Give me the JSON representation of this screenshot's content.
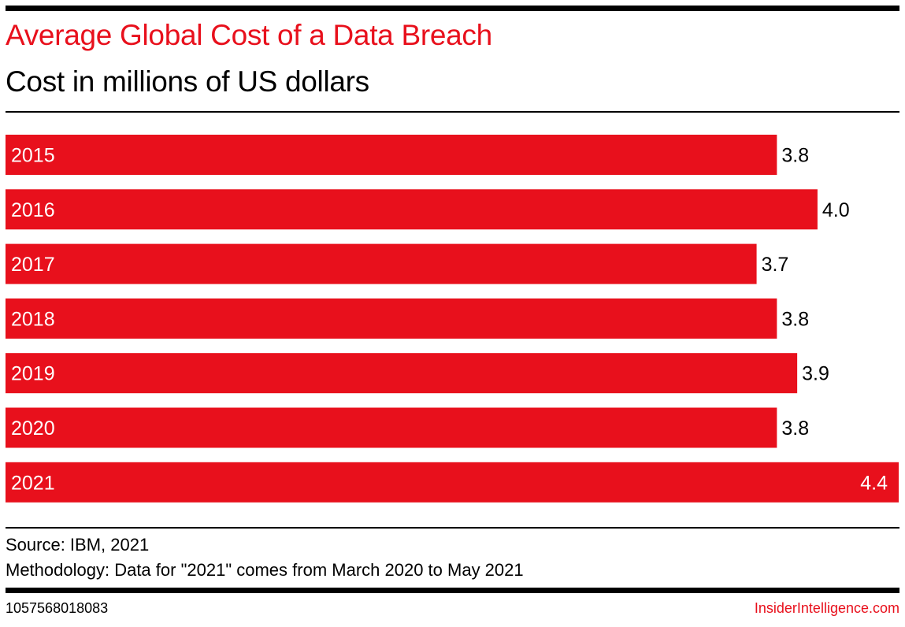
{
  "colors": {
    "bar": "#E8101C",
    "title": "#E8101C",
    "brand": "#E8101C"
  },
  "header": {
    "title": "Average Global Cost of a Data Breach",
    "subtitle": "Cost in millions of US dollars"
  },
  "chart_data": {
    "type": "bar",
    "orientation": "horizontal",
    "title": "Average Global Cost of a Data Breach",
    "subtitle": "Cost in millions of US dollars",
    "xlabel": "",
    "ylabel": "",
    "categories": [
      "2015",
      "2016",
      "2017",
      "2018",
      "2019",
      "2020",
      "2021"
    ],
    "values": [
      3.8,
      4.0,
      3.7,
      3.8,
      3.9,
      3.8,
      4.4
    ],
    "value_labels": [
      "3.8",
      "4.0",
      "3.7",
      "3.8",
      "3.9",
      "3.8",
      "4.4"
    ],
    "xlim": [
      0,
      4.4
    ],
    "grid": false,
    "legend": "none",
    "unit": "millions of US dollars"
  },
  "footer": {
    "source": "Source: IBM, 2021",
    "methodology": "Methodology: Data for \"2021\" comes from March 2020 to May 2021",
    "chart_id": "1057568018083",
    "brand": "InsiderIntelligence.com"
  }
}
